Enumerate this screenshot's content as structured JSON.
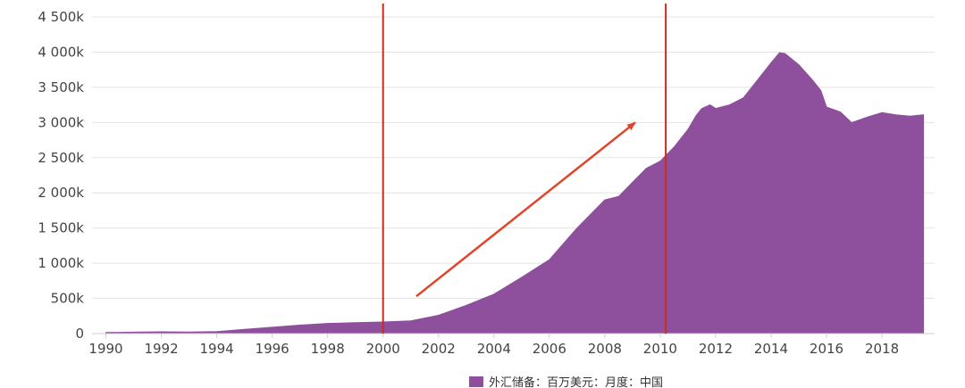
{
  "chart_data": {
    "type": "area",
    "title": "",
    "xlabel": "",
    "ylabel": "",
    "xlim": [
      1989.5,
      2019.9
    ],
    "ylim": [
      0,
      4500000
    ],
    "grid": true,
    "legend_position": "bottom",
    "y_ticks": [
      0,
      500000,
      1000000,
      1500000,
      2000000,
      2500000,
      3000000,
      3500000,
      4000000,
      4500000
    ],
    "y_tick_labels": [
      "0",
      "500k",
      "1 000k",
      "1 500k",
      "2 000k",
      "2 500k",
      "3 000k",
      "3 500k",
      "4 000k",
      "4 500k"
    ],
    "x_ticks": [
      1990,
      1992,
      1994,
      1996,
      1998,
      2000,
      2002,
      2004,
      2006,
      2008,
      2010,
      2012,
      2014,
      2016,
      2018
    ],
    "x_tick_labels": [
      "1990",
      "1992",
      "1994",
      "1996",
      "1998",
      "2000",
      "2002",
      "2004",
      "2006",
      "2008",
      "2010",
      "2012",
      "2014",
      "2016",
      "2018"
    ],
    "series": [
      {
        "name": "外汇储备：百万美元：月度：中国",
        "color": "#8e4f9c",
        "x": [
          1990.0,
          1991.0,
          1992.0,
          1993.0,
          1994.0,
          1995.0,
          1996.0,
          1997.0,
          1998.0,
          1999.0,
          2000.0,
          2001.0,
          2002.0,
          2003.0,
          2004.0,
          2005.0,
          2006.0,
          2007.0,
          2008.0,
          2008.5,
          2009.0,
          2009.5,
          2010.0,
          2010.5,
          2011.0,
          2011.3,
          2011.5,
          2011.8,
          2012.0,
          2012.5,
          2013.0,
          2013.5,
          2014.0,
          2014.3,
          2014.5,
          2015.0,
          2015.5,
          2015.8,
          2016.0,
          2016.5,
          2016.9,
          2017.0,
          2017.5,
          2018.0,
          2018.5,
          2019.0,
          2019.5
        ],
        "values": [
          15000,
          20000,
          25000,
          22000,
          28000,
          60000,
          90000,
          120000,
          145000,
          155000,
          165000,
          180000,
          260000,
          400000,
          560000,
          800000,
          1050000,
          1500000,
          1900000,
          1950000,
          2150000,
          2350000,
          2450000,
          2650000,
          2900000,
          3100000,
          3200000,
          3250000,
          3200000,
          3250000,
          3350000,
          3600000,
          3850000,
          3990000,
          3980000,
          3820000,
          3600000,
          3450000,
          3220000,
          3150000,
          3000000,
          3010000,
          3080000,
          3140000,
          3110000,
          3090000,
          3110000
        ]
      }
    ],
    "annotations": [
      {
        "type": "vertical-line",
        "x": 2000,
        "color": "#cc2b1d"
      },
      {
        "type": "vertical-line",
        "x": 2010.2,
        "color": "#cc2b1d"
      },
      {
        "type": "arrow",
        "from": [
          2001.2,
          530000
        ],
        "to": [
          2009.1,
          3000000
        ],
        "color": "#e0452a"
      }
    ]
  }
}
